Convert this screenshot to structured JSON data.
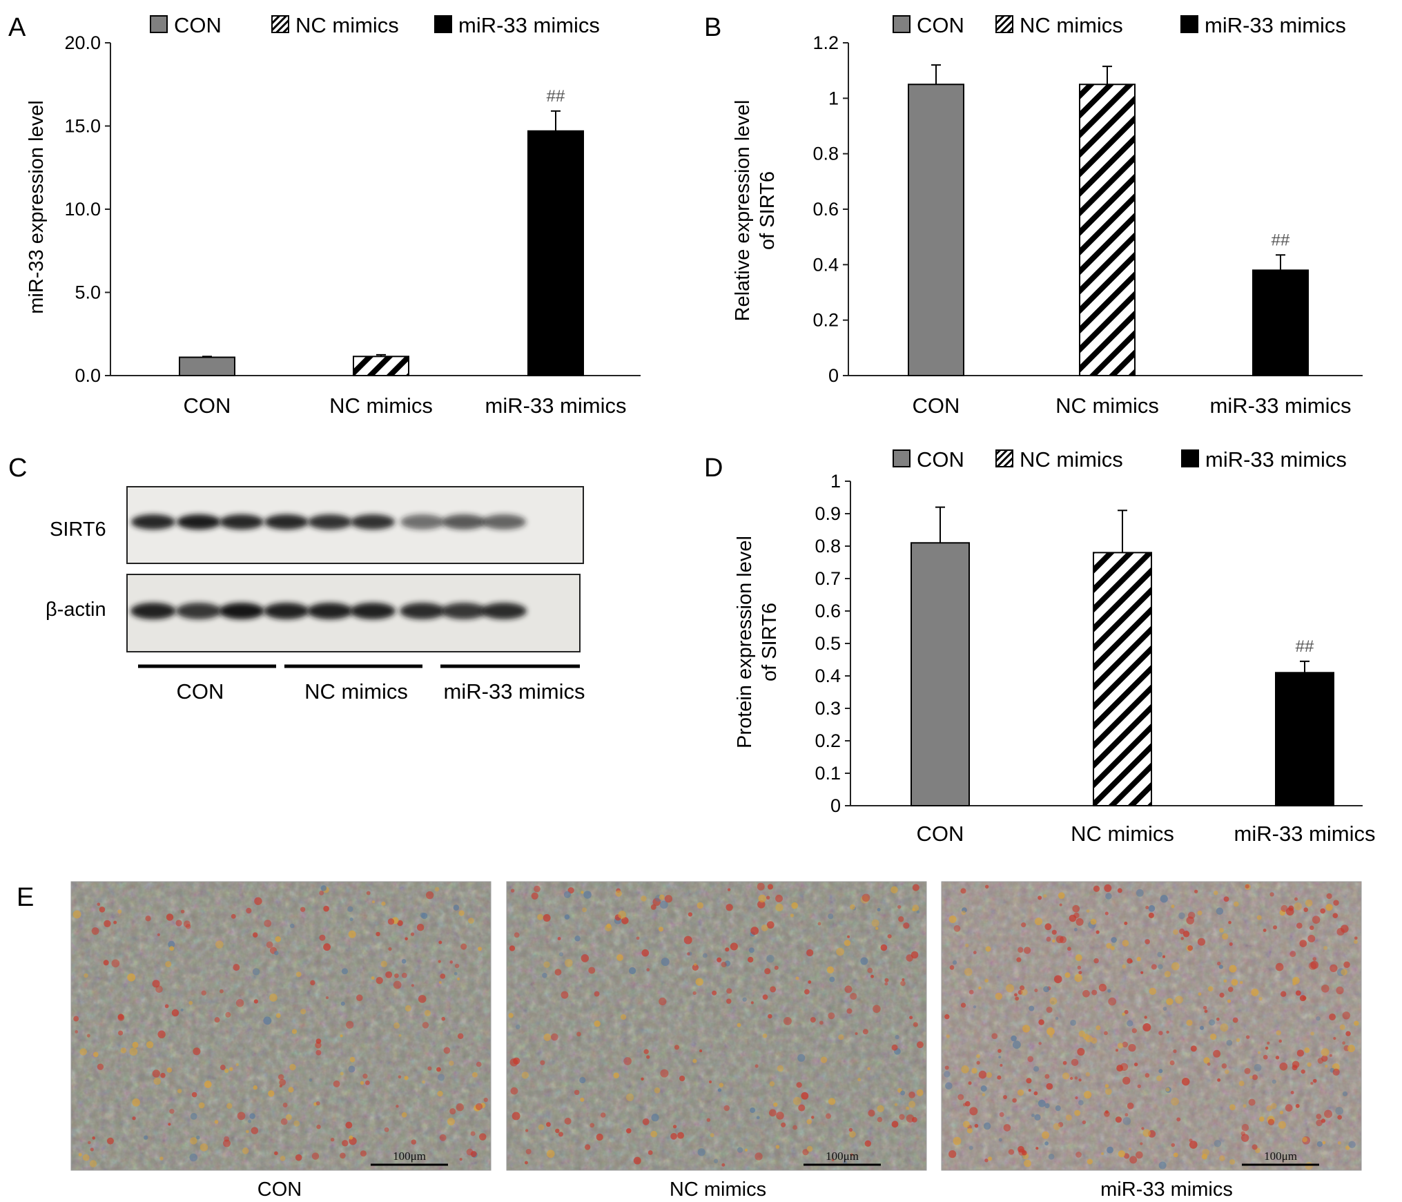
{
  "colors": {
    "CON": "#808080",
    "miR-33 mimics": "#000000",
    "axis": "#222222"
  },
  "panels": {
    "A": "A",
    "B": "B",
    "C": "C",
    "D": "D",
    "E": "E"
  },
  "chart_data": [
    {
      "id": "A",
      "type": "bar",
      "categories": [
        "CON",
        "NC mimics",
        "miR-33 mimics"
      ],
      "values": [
        1.1,
        1.15,
        14.7
      ],
      "errors": [
        0.05,
        0.1,
        1.2
      ],
      "ylabel": "miR-33 expression level",
      "ylim": [
        0,
        20
      ],
      "ticks": [
        "0.0",
        "5.0",
        "10.0",
        "15.0",
        "20.0"
      ],
      "annotations": [
        "",
        "",
        "##"
      ],
      "legend": [
        "CON",
        "NC mimics",
        "miR-33 mimics"
      ],
      "styles": [
        "gray",
        "hatch",
        "black"
      ]
    },
    {
      "id": "B",
      "type": "bar",
      "categories": [
        "CON",
        "NC mimics",
        "miR-33 mimics"
      ],
      "values": [
        1.05,
        1.05,
        0.38
      ],
      "errors": [
        0.07,
        0.065,
        0.055
      ],
      "ylabel": "Relative expression level of SIRT6",
      "ylabel_lines": [
        "Relative expression level",
        "of SIRT6"
      ],
      "ylim": [
        0,
        1.2
      ],
      "ticks": [
        "0",
        "0.2",
        "0.4",
        "0.6",
        "0.8",
        "1",
        "1.2"
      ],
      "annotations": [
        "",
        "",
        "##"
      ],
      "legend": [
        "CON",
        "NC mimics",
        "miR-33 mimics"
      ],
      "styles": [
        "gray",
        "hatch",
        "black"
      ]
    },
    {
      "id": "D",
      "type": "bar",
      "categories": [
        "CON",
        "NC mimics",
        "miR-33 mimics"
      ],
      "values": [
        0.81,
        0.78,
        0.41
      ],
      "errors": [
        0.11,
        0.13,
        0.035
      ],
      "ylabel": "Protein expression level of SIRT6",
      "ylabel_lines": [
        "Protein expression level",
        "of SIRT6"
      ],
      "ylim": [
        0,
        1
      ],
      "ticks": [
        "0",
        "0.1",
        "0.2",
        "0.3",
        "0.4",
        "0.5",
        "0.6",
        "0.7",
        "0.8",
        "0.9",
        "1"
      ],
      "annotations": [
        "",
        "",
        "##"
      ],
      "legend": [
        "CON",
        "NC mimics",
        "miR-33 mimics"
      ],
      "styles": [
        "gray",
        "hatch",
        "black"
      ]
    }
  ],
  "blot": {
    "rows": [
      "SIRT6",
      "β-actin"
    ],
    "groups": [
      "CON",
      "NC mimics",
      "miR-33 mimics"
    ],
    "sirt6_intensity": [
      0.95,
      1.0,
      0.95,
      0.95,
      0.9,
      0.9,
      0.6,
      0.7,
      0.65
    ],
    "actin_intensity": [
      0.95,
      0.85,
      1.0,
      0.95,
      0.95,
      0.95,
      0.9,
      0.85,
      0.9
    ]
  },
  "micrographs": {
    "captions": [
      "CON",
      "NC mimics",
      "miR-33 mimics"
    ],
    "scale_label": "100μm",
    "red_staining": [
      0.3,
      0.35,
      0.8
    ]
  }
}
